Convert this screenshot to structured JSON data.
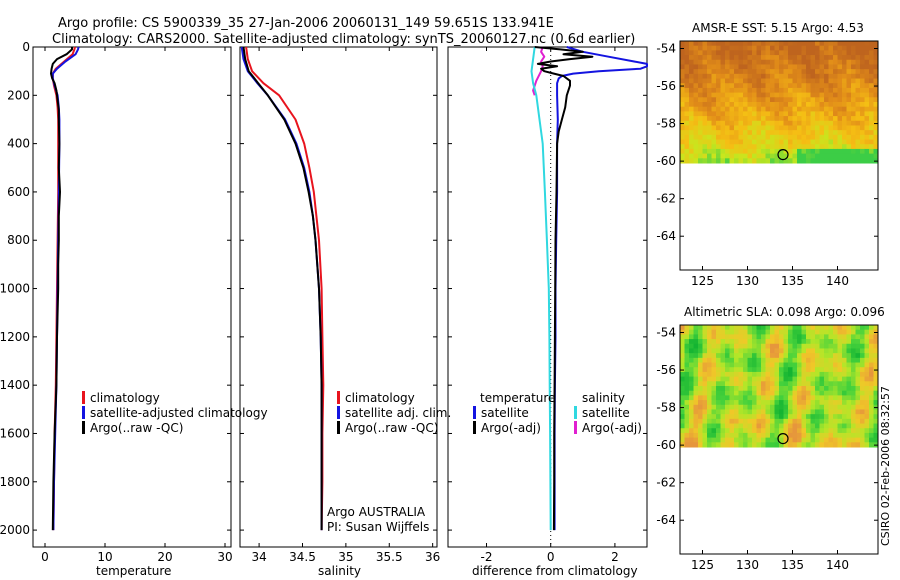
{
  "header": {
    "line1": "Argo profile: CS 5900339_35 27-Jan-2006 20060131_149 59.651S 133.941E",
    "line2": "Climatology: CARS2000. Satellite-adjusted climatology: synTS_20060127.nc (0.6d earlier)"
  },
  "credit": "CSIRO 02-Feb-2006 08:32:57",
  "colors": {
    "climatology": "#e8141e",
    "satellite": "#1414e0",
    "argo": "#000000",
    "satellite_diff": "#30d8e0",
    "argo_diff": "#e020d0"
  },
  "chart_data": [
    {
      "type": "line",
      "name": "temperature-profile",
      "xlabel": "temperature",
      "ylabel": "",
      "xlim": [
        -2,
        31
      ],
      "ylim": [
        2070,
        0
      ],
      "xticks": [
        0,
        10,
        20,
        30
      ],
      "yticks": [
        0,
        200,
        400,
        600,
        800,
        1000,
        1200,
        1400,
        1600,
        1800,
        2000
      ],
      "legend": [
        "climatology",
        "satellite-adjusted climatology",
        "Argo(..raw -QC)"
      ],
      "series": [
        {
          "name": "climatology",
          "color": "#e8141e",
          "depth": [
            0,
            10,
            30,
            60,
            90,
            110,
            130,
            160,
            200,
            250,
            300,
            400,
            600,
            800,
            1000,
            1200,
            1400,
            1600,
            1800,
            2000
          ],
          "values": [
            5.0,
            4.9,
            4.6,
            3.2,
            1.8,
            1.3,
            1.3,
            1.5,
            1.9,
            2.1,
            2.2,
            2.2,
            2.2,
            2.1,
            2.0,
            1.9,
            1.8,
            1.6,
            1.5,
            1.4
          ]
        },
        {
          "name": "satellite-adjusted climatology",
          "color": "#1414e0",
          "depth": [
            0,
            10,
            30,
            60,
            90,
            110,
            130,
            160,
            200,
            250,
            300,
            400,
            600,
            800,
            1000,
            1200,
            1400,
            1600,
            1800,
            2000
          ],
          "values": [
            5.6,
            5.5,
            5.1,
            3.4,
            2.0,
            1.3,
            1.3,
            1.6,
            2.1,
            2.3,
            2.4,
            2.4,
            2.3,
            2.2,
            2.1,
            2.0,
            1.9,
            1.7,
            1.5,
            1.4
          ]
        },
        {
          "name": "Argo(..raw -QC)",
          "color": "#000000",
          "depth": [
            0,
            10,
            30,
            50,
            70,
            90,
            110,
            130,
            150,
            180,
            220,
            260,
            300,
            400,
            500,
            600,
            700,
            800,
            900,
            1000,
            1200,
            1400,
            1600,
            1800,
            2000
          ],
          "values": [
            4.5,
            4.5,
            3.6,
            2.0,
            1.3,
            1.1,
            1.0,
            1.2,
            1.6,
            1.9,
            2.1,
            2.3,
            2.3,
            2.4,
            2.3,
            2.5,
            2.3,
            2.3,
            2.2,
            2.2,
            2.0,
            1.9,
            1.6,
            1.4,
            1.3
          ]
        }
      ]
    },
    {
      "type": "line",
      "name": "salinity-profile",
      "xlabel": "salinity",
      "ylabel": "",
      "xlim": [
        33.78,
        36.05
      ],
      "ylim": [
        2070,
        0
      ],
      "xticks": [
        34,
        34.5,
        35,
        35.5,
        36
      ],
      "legend": [
        "climatology",
        "satellite adj. clim.",
        "Argo(..raw -QC)"
      ],
      "annotation": [
        "Argo AUSTRALIA",
        "PI: Susan Wijffels"
      ],
      "series": [
        {
          "name": "climatology",
          "color": "#e8141e",
          "depth": [
            0,
            50,
            100,
            150,
            200,
            300,
            400,
            500,
            600,
            700,
            800,
            1000,
            1200,
            1400,
            1600,
            1800,
            2000
          ],
          "values": [
            33.85,
            33.87,
            33.92,
            34.05,
            34.23,
            34.42,
            34.52,
            34.58,
            34.63,
            34.66,
            34.69,
            34.72,
            34.73,
            34.74,
            34.73,
            34.73,
            34.72
          ]
        },
        {
          "name": "satellite adj. clim.",
          "color": "#1414e0",
          "depth": [
            0,
            50,
            100,
            150,
            200,
            300,
            400,
            500,
            600,
            700,
            800,
            1000,
            1200,
            1400,
            1600,
            1800,
            2000
          ],
          "values": [
            33.8,
            33.82,
            33.87,
            33.98,
            34.1,
            34.3,
            34.43,
            34.52,
            34.58,
            34.62,
            34.65,
            34.69,
            34.71,
            34.72,
            34.72,
            34.72,
            34.72
          ]
        },
        {
          "name": "Argo(..raw -QC)",
          "color": "#000000",
          "depth": [
            0,
            50,
            100,
            150,
            200,
            300,
            400,
            500,
            600,
            700,
            800,
            1000,
            1200,
            1400,
            1600,
            1800,
            2000
          ],
          "values": [
            33.82,
            33.84,
            33.88,
            33.99,
            34.1,
            34.29,
            34.42,
            34.51,
            34.57,
            34.62,
            34.65,
            34.69,
            34.71,
            34.72,
            34.72,
            34.72,
            34.72
          ]
        }
      ]
    },
    {
      "type": "line",
      "name": "difference-profile",
      "xlabel": "difference from climatology",
      "ylabel": "",
      "xlim": [
        -3.2,
        3.0
      ],
      "ylim": [
        2070,
        0
      ],
      "xticks": [
        -2,
        0,
        2
      ],
      "legend_temperature": [
        "temperature",
        "satellite",
        "Argo(-adj)"
      ],
      "legend_salinity": [
        "salinity",
        "satellite",
        "Argo(-adj)"
      ],
      "series": [
        {
          "name": "temperature satellite",
          "color": "#1414e0",
          "depth": [
            0,
            20,
            40,
            60,
            70,
            80,
            90,
            100,
            110,
            120,
            130,
            150,
            200,
            300,
            400,
            600,
            800,
            1000,
            1200,
            1400,
            1600,
            1800,
            2000
          ],
          "values": [
            0.5,
            1.0,
            1.8,
            2.6,
            3.0,
            3.0,
            2.8,
            1.5,
            0.7,
            0.35,
            0.25,
            0.2,
            0.2,
            0.22,
            0.2,
            0.2,
            0.17,
            0.15,
            0.15,
            0.13,
            0.12,
            0.12,
            0.12
          ]
        },
        {
          "name": "temperature Argo(-adj)",
          "color": "#000000",
          "depth": [
            0,
            10,
            20,
            30,
            40,
            50,
            60,
            70,
            80,
            90,
            100,
            110,
            120,
            130,
            140,
            160,
            200,
            250,
            300,
            350,
            400,
            600,
            800,
            1000,
            1200,
            1400,
            1600,
            1800,
            2000
          ],
          "values": [
            -0.5,
            0.3,
            1.0,
            0.4,
            1.3,
            0.6,
            0.0,
            -0.4,
            0.2,
            -0.3,
            -0.2,
            0.1,
            0.4,
            0.5,
            0.6,
            0.6,
            0.5,
            0.45,
            0.35,
            0.25,
            0.2,
            0.18,
            0.15,
            0.14,
            0.13,
            0.12,
            0.11,
            0.11,
            0.1
          ]
        },
        {
          "name": "salinity satellite",
          "color": "#30d8e0",
          "depth": [
            0,
            50,
            100,
            150,
            200,
            300,
            400,
            600,
            800,
            1000,
            1200,
            1400,
            1600,
            1800,
            2000
          ],
          "values": [
            -0.5,
            -0.55,
            -0.6,
            -0.55,
            -0.45,
            -0.35,
            -0.25,
            -0.18,
            -0.12,
            -0.06,
            -0.04,
            -0.03,
            -0.02,
            -0.01,
            0.0
          ]
        },
        {
          "name": "salinity Argo(-adj)",
          "color": "#e020d0",
          "depth": [
            0,
            20,
            40,
            60,
            80,
            100,
            140,
            180,
            200
          ],
          "values": [
            -0.25,
            -0.3,
            -0.2,
            -0.3,
            -0.25,
            -0.3,
            -0.45,
            -0.55,
            -0.5
          ]
        }
      ]
    },
    {
      "type": "heatmap",
      "name": "amsr-sst-map",
      "title": "AMSR-E SST: 5.15 Argo: 4.53",
      "xlim": [
        122.5,
        144.5
      ],
      "ylim": [
        -65.8,
        -53.6
      ],
      "xticks": [
        125,
        130,
        135,
        140
      ],
      "yticks": [
        -54,
        -56,
        -58,
        -60,
        -62,
        -64
      ],
      "data_lat_range": [
        -60.1,
        -53.6
      ],
      "marker": {
        "lon": 133.941,
        "lat": -59.651
      }
    },
    {
      "type": "heatmap",
      "name": "altimetric-sla-map",
      "title": "Altimetric SLA: 0.098 Argo: 0.096",
      "xlim": [
        122.5,
        144.5
      ],
      "ylim": [
        -65.8,
        -53.6
      ],
      "xticks": [
        125,
        130,
        135,
        140
      ],
      "yticks": [
        -54,
        -56,
        -58,
        -60,
        -62,
        -64
      ],
      "data_lat_range": [
        -60.1,
        -53.6
      ],
      "marker": {
        "lon": 133.941,
        "lat": -59.651
      }
    }
  ]
}
